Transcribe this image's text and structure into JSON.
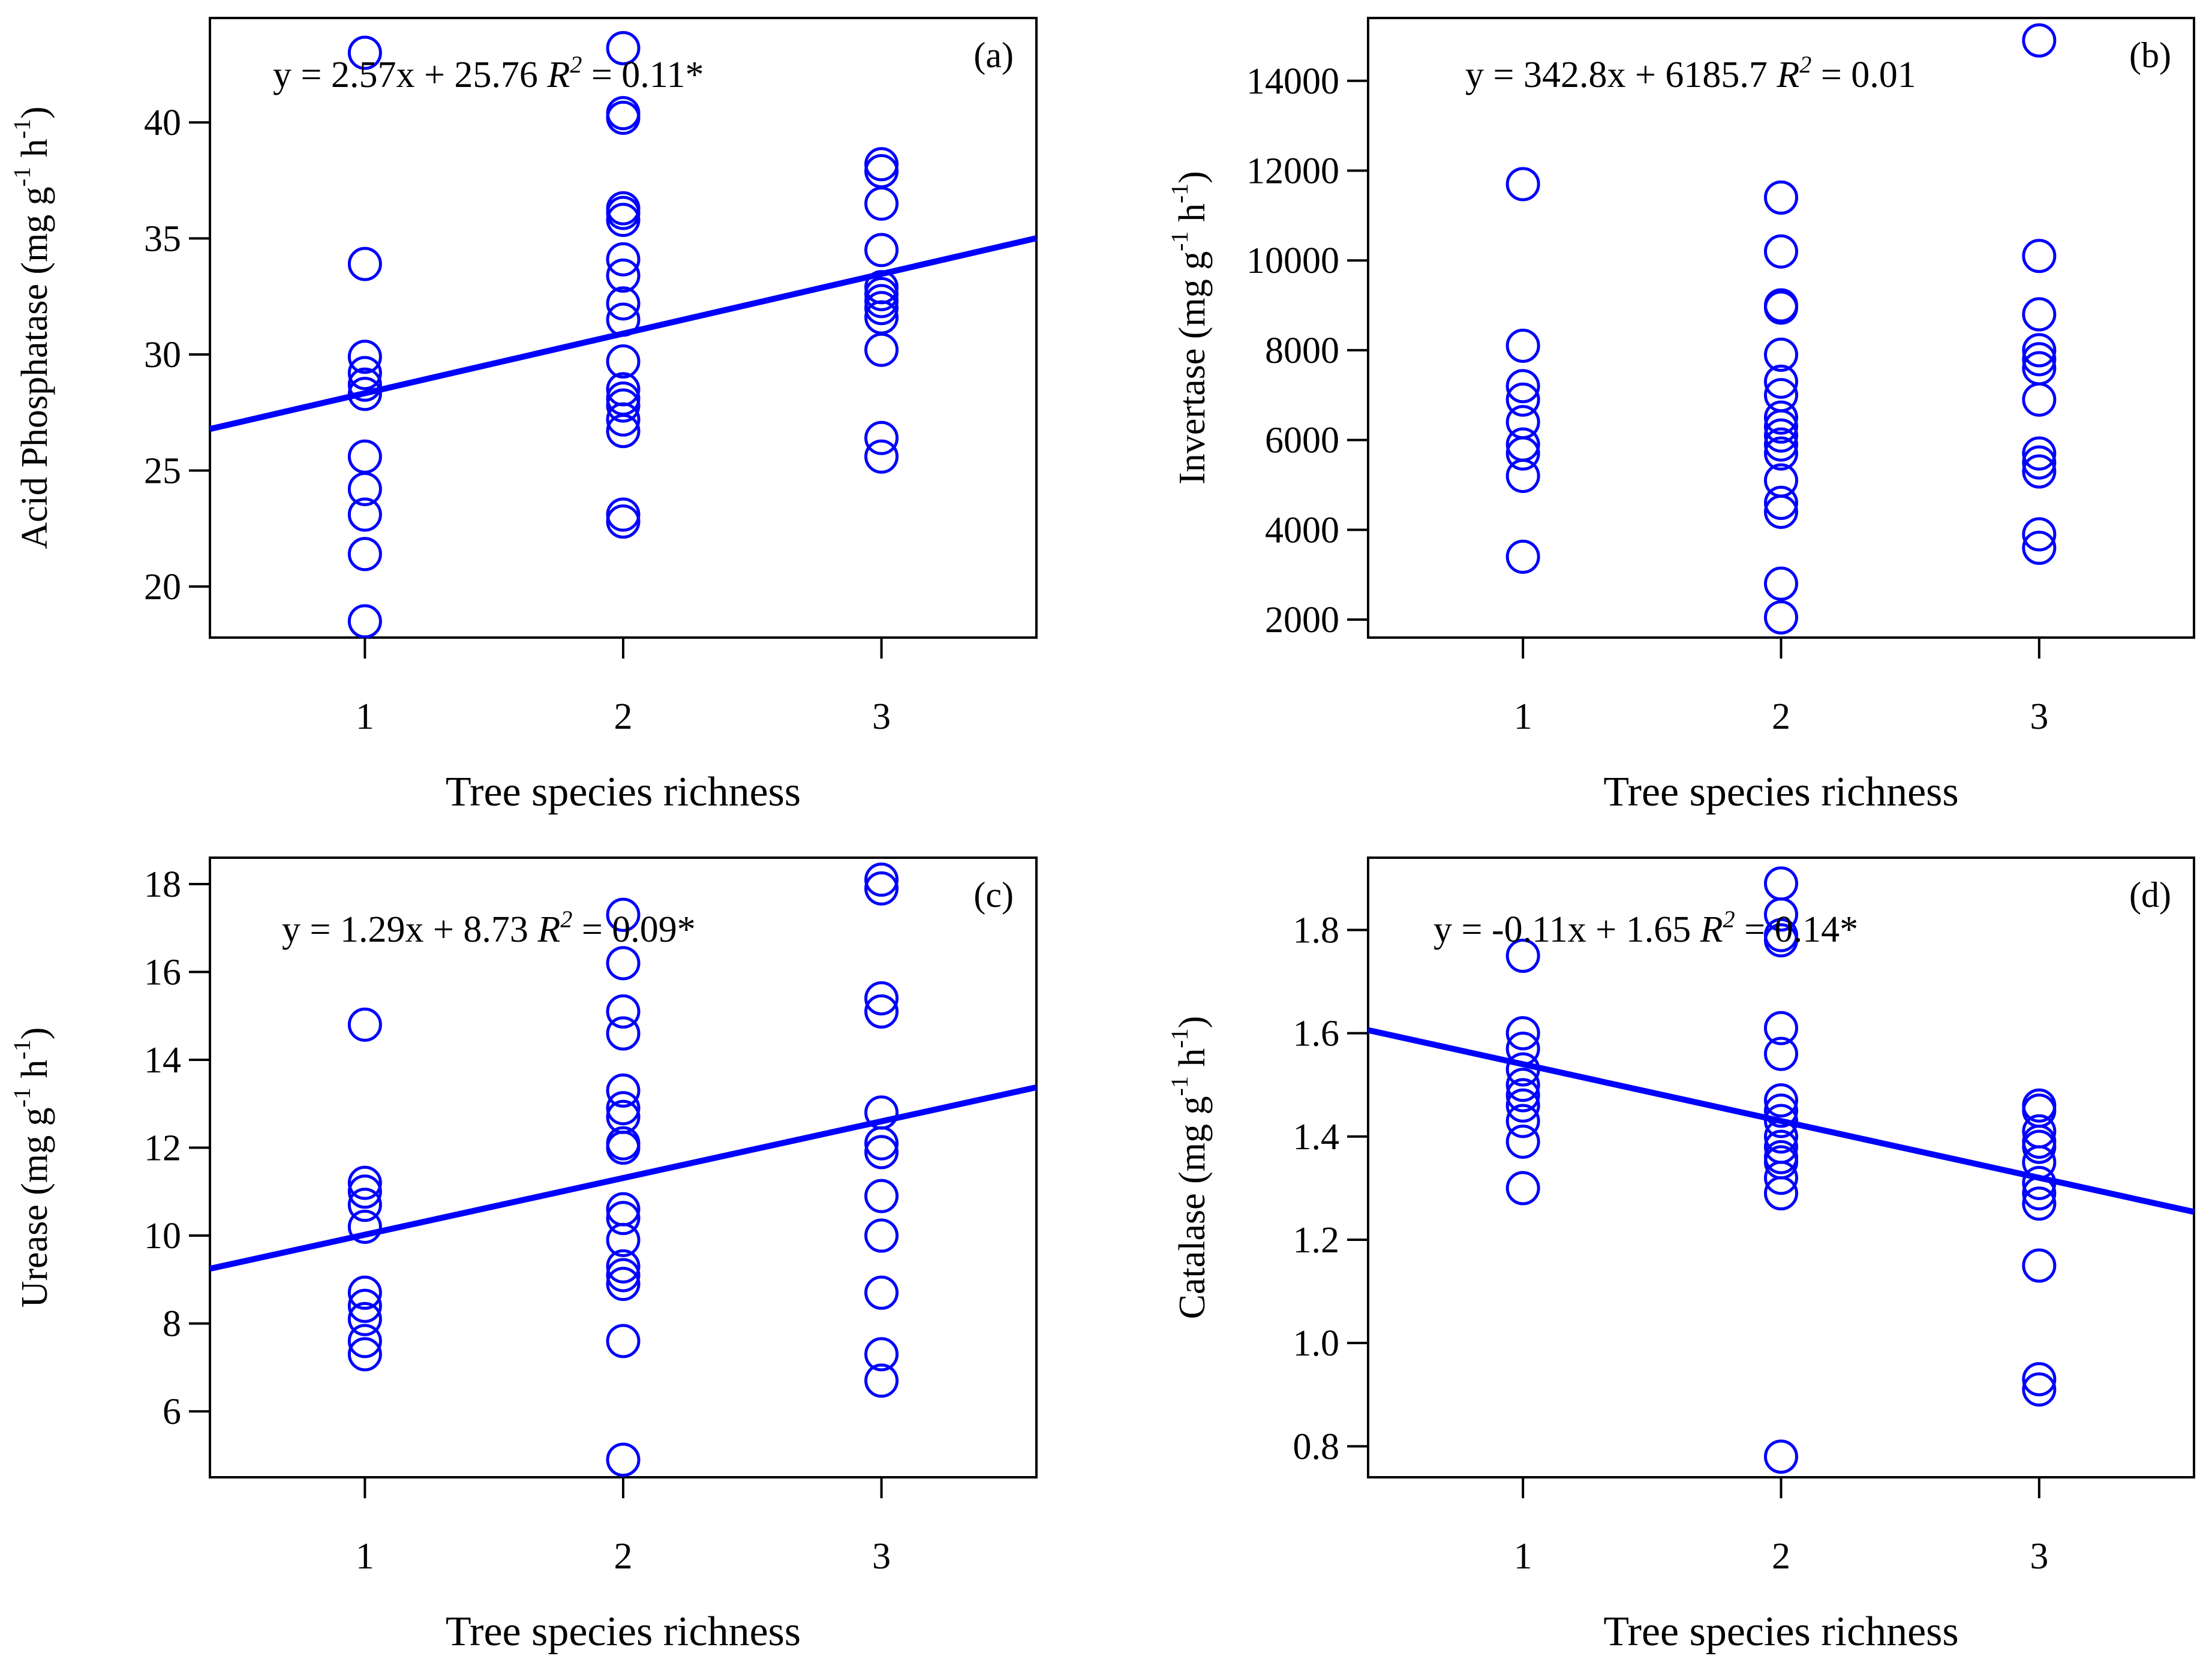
{
  "colors": {
    "points": "#0000ff",
    "line": "#0000ff",
    "axis": "#000000",
    "background": "#ffffff"
  },
  "chart_data": [
    {
      "type": "scatter",
      "panel": "(a)",
      "xlabel": "Tree species richness",
      "ylabel": "Acid Phosphatase (mg g-1 h-1)",
      "ylabel_parts": {
        "base": "Acid Phosphatase (mg g",
        "sup1": "-1",
        "mid": " h",
        "sup2": "-1",
        "end": ")"
      },
      "equation": {
        "prefix": "y = 2.57x + 25.76 ",
        "r": "R",
        "sq": "2",
        "suffix": " = 0.11*"
      },
      "xlim": [
        0.4,
        3.6
      ],
      "ylim": [
        17.8,
        44.5
      ],
      "xticks": [
        1,
        2,
        3
      ],
      "xtick_labels": [
        "1",
        "2",
        "3"
      ],
      "yticks": [
        20,
        25,
        30,
        35,
        40
      ],
      "ytick_labels": [
        "20",
        "25",
        "30",
        "35",
        "40"
      ],
      "fit": {
        "slope": 2.57,
        "intercept": 25.76
      },
      "points": {
        "x1": [
          43.0,
          33.9,
          29.9,
          29.2,
          28.7,
          28.3,
          25.6,
          24.2,
          23.1,
          21.4,
          18.5
        ],
        "x2": [
          43.2,
          40.4,
          40.2,
          36.3,
          36.1,
          35.8,
          34.1,
          33.4,
          32.2,
          31.5,
          29.7,
          28.5,
          28.1,
          27.8,
          27.2,
          26.7,
          23.1,
          22.8
        ],
        "x3": [
          38.2,
          37.9,
          36.5,
          34.5,
          32.9,
          32.6,
          32.3,
          32.0,
          31.6,
          30.2,
          26.4,
          25.6
        ]
      }
    },
    {
      "type": "scatter",
      "panel": "(b)",
      "xlabel": "Tree species richness",
      "ylabel": "Invertase (mg g-1 h-1)",
      "ylabel_parts": {
        "base": "Invertase (mg g",
        "sup1": "-1",
        "mid": " h",
        "sup2": "-1",
        "end": ")"
      },
      "equation": {
        "prefix": "y = 342.8x + 6185.7 ",
        "r": "R",
        "sq": "2",
        "suffix": " = 0.01"
      },
      "xlim": [
        0.4,
        3.6
      ],
      "ylim": [
        1600,
        15400
      ],
      "xticks": [
        1,
        2,
        3
      ],
      "xtick_labels": [
        "1",
        "2",
        "3"
      ],
      "yticks": [
        2000,
        4000,
        6000,
        8000,
        10000,
        12000,
        14000
      ],
      "ytick_labels": [
        "2000",
        "4000",
        "6000",
        "8000",
        "10000",
        "12000",
        "14000"
      ],
      "fit": null,
      "points": {
        "x1": [
          11700,
          8100,
          7200,
          6900,
          6400,
          5900,
          5700,
          5200,
          3400
        ],
        "x2": [
          11400,
          10200,
          9000,
          8950,
          7900,
          7300,
          7000,
          6500,
          6300,
          6100,
          5900,
          5700,
          5100,
          4600,
          4400,
          2800,
          2050
        ],
        "x3": [
          14900,
          10100,
          8800,
          8000,
          7800,
          7600,
          6900,
          5700,
          5500,
          5300,
          3900,
          3600
        ]
      }
    },
    {
      "type": "scatter",
      "panel": "(c)",
      "xlabel": "Tree species richness",
      "ylabel": "Urease (mg g-1 h-1)",
      "ylabel_parts": {
        "base": "Urease (mg g",
        "sup1": "-1",
        "mid": " h",
        "sup2": "-1",
        "end": ")"
      },
      "equation": {
        "prefix": "y = 1.29x + 8.73 ",
        "r": "R",
        "sq": "2",
        "suffix": " = 0.09*"
      },
      "xlim": [
        0.4,
        3.6
      ],
      "ylim": [
        4.5,
        18.6
      ],
      "xticks": [
        1,
        2,
        3
      ],
      "xtick_labels": [
        "1",
        "2",
        "3"
      ],
      "yticks": [
        6,
        8,
        10,
        12,
        14,
        16,
        18
      ],
      "ytick_labels": [
        "6",
        "8",
        "10",
        "12",
        "14",
        "16",
        "18"
      ],
      "fit": {
        "slope": 1.29,
        "intercept": 8.73
      },
      "points": {
        "x1": [
          14.8,
          11.2,
          11.0,
          10.7,
          10.2,
          8.7,
          8.4,
          8.1,
          7.6,
          7.3
        ],
        "x2": [
          17.3,
          16.2,
          15.1,
          14.6,
          13.3,
          12.9,
          12.7,
          12.1,
          12.0,
          10.6,
          10.4,
          9.9,
          9.3,
          9.1,
          8.9,
          7.6,
          4.9
        ],
        "x3": [
          18.1,
          17.9,
          15.4,
          15.1,
          12.8,
          12.1,
          11.9,
          10.9,
          10.0,
          8.7,
          7.3,
          6.7
        ]
      }
    },
    {
      "type": "scatter",
      "panel": "(d)",
      "xlabel": "Tree species richness",
      "ylabel": "Catalase (mg g-1 h-1)",
      "ylabel_parts": {
        "base": "Catalase (mg g",
        "sup1": "-1",
        "mid": " h",
        "sup2": "-1",
        "end": ")"
      },
      "equation": {
        "prefix": "y = -0.11x + 1.65 ",
        "r": "R",
        "sq": "2",
        "suffix": " = 0.14*"
      },
      "xlim": [
        0.4,
        3.6
      ],
      "ylim": [
        0.74,
        1.94
      ],
      "xticks": [
        1,
        2,
        3
      ],
      "xtick_labels": [
        "1",
        "2",
        "3"
      ],
      "yticks": [
        0.8,
        1.0,
        1.2,
        1.4,
        1.6,
        1.8
      ],
      "ytick_labels": [
        "0.8",
        "1.0",
        "1.2",
        "1.4",
        "1.6",
        "1.8"
      ],
      "fit": {
        "slope": -0.11,
        "intercept": 1.65
      },
      "points": {
        "x1": [
          1.75,
          1.6,
          1.57,
          1.53,
          1.5,
          1.48,
          1.46,
          1.43,
          1.39,
          1.3
        ],
        "x2": [
          1.89,
          1.83,
          1.79,
          1.78,
          1.61,
          1.56,
          1.47,
          1.45,
          1.43,
          1.4,
          1.38,
          1.36,
          1.35,
          1.32,
          1.29,
          0.78
        ],
        "x3": [
          1.46,
          1.45,
          1.41,
          1.39,
          1.38,
          1.35,
          1.31,
          1.29,
          1.27,
          1.15,
          0.93,
          0.91
        ]
      }
    }
  ]
}
